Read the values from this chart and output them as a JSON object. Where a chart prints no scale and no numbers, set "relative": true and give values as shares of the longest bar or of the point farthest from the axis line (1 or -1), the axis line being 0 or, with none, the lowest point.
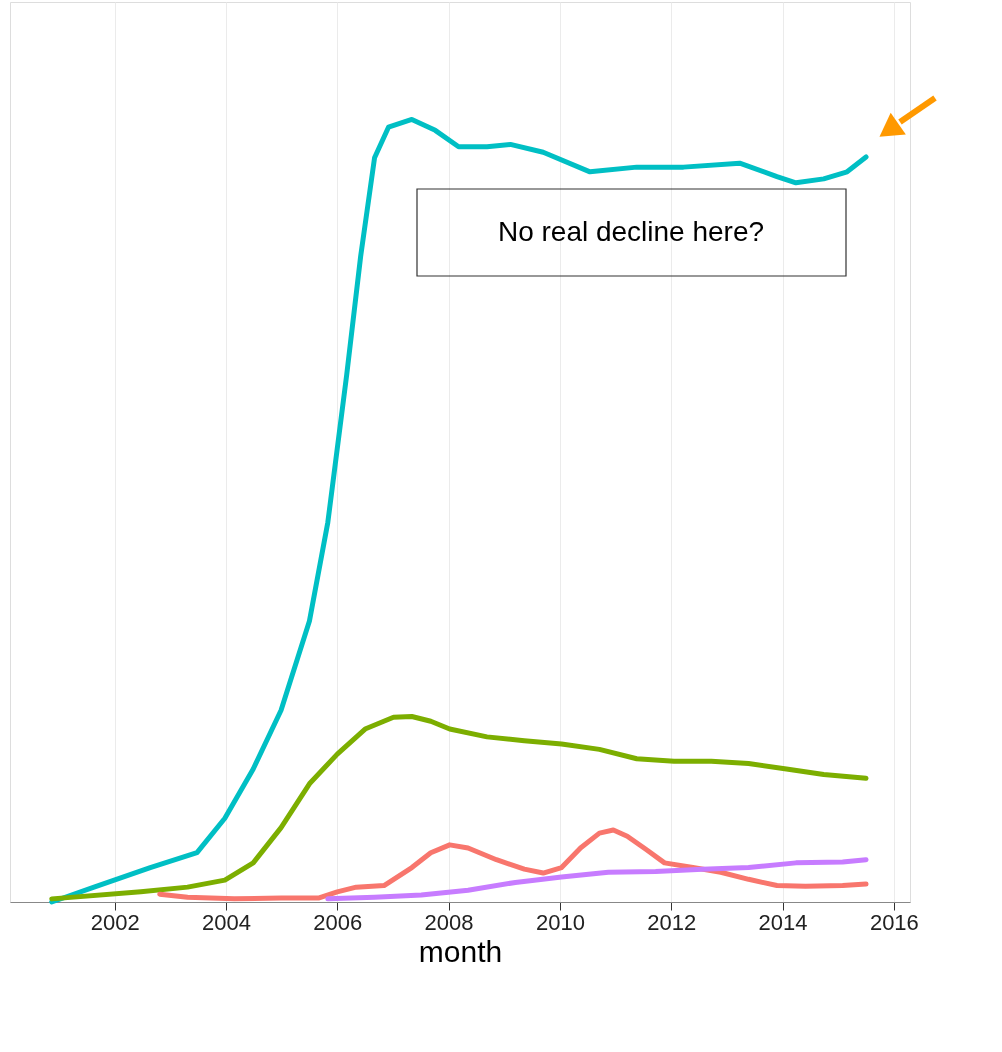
{
  "chart_data": {
    "type": "line",
    "xlabel": "month",
    "relative": true,
    "grid": "x",
    "legend": false,
    "marker": "none",
    "line_style": "solid",
    "xlim": [
      2000.12,
      2016.29
    ],
    "xticks": [
      2002,
      2004,
      2006,
      2008,
      2010,
      2012,
      2014,
      2016
    ],
    "annotations": [
      "No real decline here?"
    ],
    "series": [
      {
        "color": "#00bfc4",
        "x": [
          2000.87,
          2001.63,
          2002.64,
          2003.48,
          2003.98,
          2004.49,
          2004.99,
          2005.5,
          2005.83,
          2006.17,
          2006.42,
          2006.67,
          2006.92,
          2007.34,
          2007.76,
          2008.18,
          2008.69,
          2009.11,
          2009.7,
          2010.54,
          2011.38,
          2012.22,
          2013.23,
          2013.9,
          2014.24,
          2014.74,
          2015.16,
          2015.5
        ],
        "values": [
          0,
          0.019,
          0.044,
          0.063,
          0.107,
          0.17,
          0.245,
          0.359,
          0.485,
          0.674,
          0.825,
          0.951,
          0.99,
          1.0,
          0.986,
          0.965,
          0.965,
          0.968,
          0.958,
          0.933,
          0.939,
          0.939,
          0.944,
          0.927,
          0.919,
          0.924,
          0.933,
          0.952
        ]
      },
      {
        "color": "#7cae00",
        "x": [
          2000.87,
          2002.47,
          2003.31,
          2003.98,
          2004.49,
          2004.99,
          2005.5,
          2006.0,
          2006.5,
          2007.01,
          2007.34,
          2007.68,
          2008.02,
          2008.69,
          2009.36,
          2010.03,
          2010.71,
          2011.38,
          2012.05,
          2012.72,
          2013.39,
          2014.07,
          2014.74,
          2015.5
        ],
        "values": [
          0.004,
          0.013,
          0.019,
          0.028,
          0.05,
          0.095,
          0.151,
          0.189,
          0.221,
          0.236,
          0.237,
          0.231,
          0.221,
          0.211,
          0.206,
          0.202,
          0.195,
          0.183,
          0.18,
          0.18,
          0.177,
          0.17,
          0.163,
          0.158
        ]
      },
      {
        "color": "#f8766d",
        "x": [
          2002.81,
          2003.31,
          2004.15,
          2004.99,
          2005.66,
          2006.0,
          2006.34,
          2006.84,
          2007.34,
          2007.68,
          2008.02,
          2008.35,
          2008.86,
          2009.36,
          2009.7,
          2010.03,
          2010.37,
          2010.71,
          2010.96,
          2011.21,
          2011.55,
          2011.88,
          2012.39,
          2012.89,
          2013.39,
          2013.9,
          2014.41,
          2015.08,
          2015.5
        ],
        "values": [
          0.01,
          0.006,
          0.004,
          0.005,
          0.005,
          0.013,
          0.019,
          0.021,
          0.044,
          0.063,
          0.073,
          0.069,
          0.054,
          0.042,
          0.037,
          0.044,
          0.069,
          0.088,
          0.092,
          0.084,
          0.067,
          0.05,
          0.044,
          0.038,
          0.029,
          0.021,
          0.02,
          0.021,
          0.023
        ]
      },
      {
        "color": "#c77cff",
        "x": [
          2005.83,
          2006.67,
          2007.51,
          2008.35,
          2009.2,
          2010.03,
          2010.87,
          2011.72,
          2012.56,
          2013.39,
          2014.24,
          2015.08,
          2015.5
        ],
        "values": [
          0.004,
          0.006,
          0.009,
          0.015,
          0.025,
          0.032,
          0.038,
          0.039,
          0.042,
          0.044,
          0.05,
          0.051,
          0.054
        ]
      }
    ]
  }
}
